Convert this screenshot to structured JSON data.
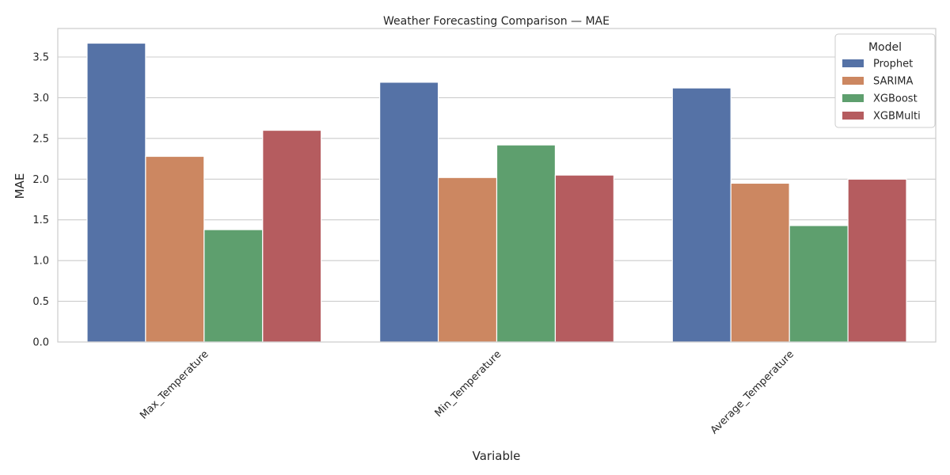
{
  "chart_data": {
    "type": "bar",
    "title": "Weather Forecasting Comparison — MAE",
    "xlabel": "Variable",
    "ylabel": "MAE",
    "categories": [
      "Max_Temperature",
      "Min_Temperature",
      "Average_Temperature"
    ],
    "series": [
      {
        "name": "Prophet",
        "values": [
          3.67,
          3.19,
          3.12
        ]
      },
      {
        "name": "SARIMA",
        "values": [
          2.28,
          2.02,
          1.95
        ]
      },
      {
        "name": "XGBoost",
        "values": [
          1.38,
          2.42,
          1.43
        ]
      },
      {
        "name": "XGBMulti",
        "values": [
          2.6,
          2.05,
          2.0
        ]
      }
    ],
    "ylim": [
      0,
      3.85
    ],
    "yticks": [
      "0.0",
      "0.5",
      "1.0",
      "1.5",
      "2.0",
      "2.5",
      "3.0",
      "3.5"
    ],
    "ytick_values": [
      0,
      0.5,
      1.0,
      1.5,
      2.0,
      2.5,
      3.0,
      3.5
    ],
    "legend": {
      "title": "Model",
      "placement": "top-right"
    },
    "grid": "horizontal",
    "colors": [
      "#5572a6",
      "#cc8761",
      "#5e9f6e",
      "#b55c5f"
    ]
  }
}
